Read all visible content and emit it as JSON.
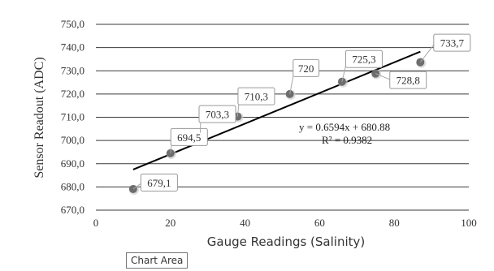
{
  "chart_data": {
    "type": "scatter",
    "xlabel": "Gauge Readings (Salinity)",
    "ylabel": "Sensor Readout (ADC)",
    "xlim": [
      0,
      100
    ],
    "ylim": [
      670,
      750
    ],
    "x_ticks": [
      "0",
      "20",
      "40",
      "60",
      "80",
      "100"
    ],
    "y_ticks": [
      "670,0",
      "680,0",
      "690,0",
      "700,0",
      "710,0",
      "720,0",
      "730,0",
      "740,0",
      "750,0"
    ],
    "grid": true,
    "x": [
      10,
      20,
      28,
      38,
      52,
      66,
      75,
      87
    ],
    "y": [
      679.1,
      694.5,
      703.3,
      710.3,
      720,
      725.3,
      728.8,
      733.7
    ],
    "data_labels": [
      "679,1",
      "694,5",
      "703,3",
      "710,3",
      "720",
      "725,3",
      "728,8",
      "733,7"
    ],
    "trendline": {
      "type": "linear",
      "slope": 0.6594,
      "intercept": 680.88,
      "x_range": [
        10,
        87
      ],
      "equation": "y = 0.6594x + 680.88",
      "r_squared": "R² = 0.9382"
    },
    "colors": {
      "marker": "#6d6d6d",
      "gridline": "#3a3a3a",
      "trendline": "#000000",
      "label_border": "#9a9a9a"
    }
  },
  "tooltip": "Chart Area"
}
